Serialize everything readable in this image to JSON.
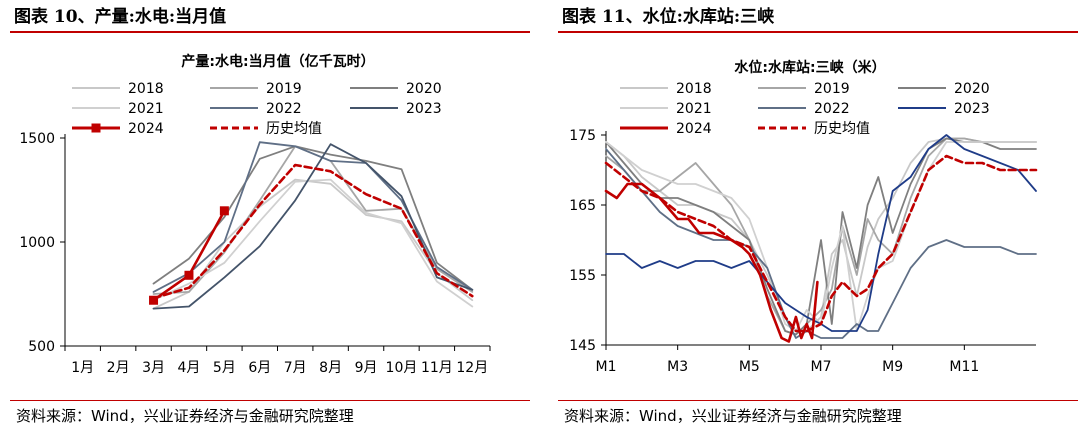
{
  "panels": {
    "left": {
      "figure_title": "图表 10、产量:水电:当月值",
      "source": "资料来源：Wind，兴业证券经济与金融研究院整理"
    },
    "right": {
      "figure_title": "图表 11、水位:水库站:三峡",
      "source": "资料来源：Wind，兴业证券经济与金融研究院整理"
    }
  },
  "colors": {
    "rule": "#c00000",
    "y2018": "#c8c8c8",
    "y2019": "#a6a6a6",
    "y2020": "#7f7f7f",
    "y2021": "#d0d0d0",
    "y2022": "#5f6f86",
    "y2023": "#44546a",
    "y2023_right": "#1f3c88",
    "y2024": "#c00000",
    "hist_avg": "#c00000"
  },
  "chart_data": [
    {
      "type": "line",
      "title": "产量:水电:当月值（亿千瓦时）",
      "xlabel": "",
      "ylabel": "",
      "categories": [
        "1月",
        "2月",
        "3月",
        "4月",
        "5月",
        "6月",
        "7月",
        "8月",
        "9月",
        "10月",
        "11月",
        "12月"
      ],
      "ylim": [
        500,
        1500
      ],
      "yticks": [
        500,
        1000,
        1500
      ],
      "legend": "top",
      "series": [
        {
          "name": "2018",
          "color_key": "y2018",
          "dash": false,
          "marker": false,
          "values": [
            null,
            null,
            680,
            760,
            1000,
            1170,
            1300,
            1280,
            1130,
            1100,
            850,
            720
          ]
        },
        {
          "name": "2019",
          "color_key": "y2019",
          "dash": false,
          "marker": false,
          "values": [
            null,
            null,
            750,
            760,
            950,
            1200,
            1460,
            1390,
            1150,
            1160,
            870,
            760
          ]
        },
        {
          "name": "2020",
          "color_key": "y2020",
          "dash": false,
          "marker": false,
          "values": [
            null,
            null,
            800,
            920,
            1120,
            1400,
            1460,
            1420,
            1390,
            1350,
            900,
            770
          ]
        },
        {
          "name": "2021",
          "color_key": "y2021",
          "dash": false,
          "marker": false,
          "values": [
            null,
            null,
            720,
            800,
            900,
            1100,
            1290,
            1300,
            1140,
            1090,
            810,
            690
          ]
        },
        {
          "name": "2022",
          "color_key": "y2022",
          "dash": false,
          "marker": false,
          "values": [
            null,
            null,
            760,
            850,
            1000,
            1480,
            1460,
            1390,
            1380,
            1200,
            880,
            770
          ]
        },
        {
          "name": "2023",
          "color_key": "y2023",
          "dash": false,
          "marker": false,
          "values": [
            null,
            null,
            680,
            690,
            830,
            980,
            1200,
            1470,
            1380,
            1220,
            830,
            770
          ]
        },
        {
          "name": "2024",
          "color_key": "y2024",
          "dash": false,
          "marker": true,
          "values": [
            null,
            null,
            720,
            840,
            1150,
            null,
            null,
            null,
            null,
            null,
            null,
            null
          ]
        },
        {
          "name": "历史均值",
          "color_key": "hist_avg",
          "dash": true,
          "marker": false,
          "values": [
            null,
            null,
            730,
            780,
            960,
            1180,
            1370,
            1340,
            1230,
            1160,
            850,
            740
          ]
        }
      ]
    },
    {
      "type": "line",
      "title": "水位:水库站:三峡（米）",
      "xlabel": "",
      "ylabel": "",
      "categories": [
        "M1",
        "M3",
        "M5",
        "M7",
        "M9",
        "M11"
      ],
      "x_range": [
        1,
        13
      ],
      "ylim": [
        145,
        175
      ],
      "yticks": [
        145,
        155,
        165,
        175
      ],
      "legend": "top",
      "series": [
        {
          "name": "2018",
          "color_key": "y2018",
          "dash": false,
          "marker": false,
          "x": [
            1,
            1.5,
            2,
            2.5,
            3,
            3.5,
            4,
            4.5,
            5,
            5.5,
            6,
            6.3,
            6.6,
            7,
            7.3,
            7.6,
            8,
            8.3,
            8.6,
            9,
            9.5,
            10,
            10.5,
            11,
            11.5,
            12,
            12.5,
            13
          ],
          "values": [
            174,
            172,
            169,
            167,
            165,
            165,
            164,
            163,
            160,
            155,
            149,
            147,
            147,
            149,
            158,
            160,
            152,
            159,
            163,
            166,
            171,
            174,
            174.5,
            174.5,
            174,
            174,
            174,
            174
          ]
        },
        {
          "name": "2019",
          "color_key": "y2019",
          "dash": false,
          "marker": false,
          "x": [
            1,
            1.5,
            2,
            2.5,
            3,
            3.5,
            4,
            4.5,
            5,
            5.5,
            6,
            6.3,
            6.6,
            7,
            7.3,
            7.6,
            8,
            8.3,
            8.6,
            9,
            9.5,
            10,
            10.5,
            11,
            11.5,
            12,
            12.5,
            13
          ],
          "values": [
            172,
            170,
            167,
            167,
            169,
            171,
            168,
            165,
            160,
            152,
            147,
            146.5,
            148,
            150,
            153,
            162,
            155,
            163,
            160,
            158,
            166,
            172,
            174.5,
            174.5,
            174,
            174,
            174,
            174
          ]
        },
        {
          "name": "2020",
          "color_key": "y2020",
          "dash": false,
          "marker": false,
          "x": [
            1,
            1.5,
            2,
            2.5,
            3,
            3.5,
            4,
            4.5,
            5,
            5.5,
            6,
            6.3,
            6.6,
            7,
            7.3,
            7.6,
            8,
            8.3,
            8.6,
            9,
            9.5,
            10,
            10.5,
            11,
            11.5,
            12,
            12.5,
            13
          ],
          "values": [
            174,
            171,
            168,
            166,
            166,
            165,
            164,
            162,
            160,
            153,
            147,
            146.5,
            148,
            160,
            148,
            164,
            156,
            165,
            169,
            161,
            168,
            173,
            174.5,
            174,
            174,
            173,
            173,
            173
          ]
        },
        {
          "name": "2021",
          "color_key": "y2021",
          "dash": false,
          "marker": false,
          "x": [
            1,
            1.5,
            2,
            2.5,
            3,
            3.5,
            4,
            4.5,
            5,
            5.5,
            6,
            6.3,
            6.6,
            7,
            7.3,
            7.6,
            8,
            8.3,
            8.6,
            9,
            9.5,
            10,
            10.5,
            11,
            11.5,
            12,
            12.5,
            13
          ],
          "values": [
            174,
            172,
            170,
            169,
            168,
            168,
            167,
            166,
            163,
            156,
            148,
            147,
            150,
            148,
            156,
            162,
            147,
            152,
            156,
            157,
            164,
            170,
            174,
            174,
            174,
            174,
            174,
            174
          ]
        },
        {
          "name": "2022",
          "color_key": "y2022",
          "dash": false,
          "marker": false,
          "x": [
            1,
            1.5,
            2,
            2.5,
            3,
            3.5,
            4,
            4.5,
            5,
            5.5,
            6,
            6.3,
            6.6,
            7,
            7.3,
            7.6,
            8,
            8.3,
            8.6,
            9,
            9.5,
            10,
            10.5,
            11,
            11.5,
            12,
            12.5,
            13
          ],
          "values": [
            173,
            170,
            167,
            164,
            162,
            161,
            160,
            160,
            159,
            156,
            149,
            146,
            147,
            146,
            146,
            146,
            148,
            147,
            147,
            151,
            156,
            159,
            160,
            159,
            159,
            159,
            158,
            158
          ]
        },
        {
          "name": "2023",
          "color_key": "y2023_right",
          "dash": false,
          "marker": false,
          "x": [
            1,
            1.5,
            2,
            2.5,
            3,
            3.5,
            4,
            4.5,
            5,
            5.5,
            6,
            6.3,
            6.6,
            7,
            7.3,
            7.6,
            8,
            8.3,
            8.6,
            9,
            9.5,
            10,
            10.5,
            11,
            11.5,
            12,
            12.5,
            13
          ],
          "values": [
            158,
            158,
            156,
            157,
            156,
            157,
            157,
            156,
            157,
            154,
            151,
            150,
            149,
            148,
            147,
            147,
            147,
            150,
            158,
            167,
            169,
            173,
            175,
            173,
            172,
            171,
            170,
            167
          ]
        },
        {
          "name": "2024",
          "color_key": "y2024",
          "dash": false,
          "marker": false,
          "x": [
            1,
            1.3,
            1.6,
            2,
            2.5,
            3,
            3.3,
            3.6,
            4,
            4.5,
            4.8,
            5,
            5.3,
            5.6,
            5.9,
            6.1,
            6.3,
            6.45,
            6.6,
            6.75,
            6.9
          ],
          "values": [
            167,
            166,
            168,
            168,
            166,
            163,
            163,
            161,
            161,
            160,
            159,
            158,
            155,
            150,
            146,
            145.5,
            149,
            146,
            148,
            146,
            154
          ]
        },
        {
          "name": "历史均值",
          "color_key": "hist_avg",
          "dash": true,
          "marker": false,
          "x": [
            1,
            1.5,
            2,
            2.5,
            3,
            3.5,
            4,
            4.5,
            5,
            5.5,
            6,
            6.3,
            6.6,
            7,
            7.3,
            7.6,
            8,
            8.3,
            8.6,
            9,
            9.5,
            10,
            10.5,
            11,
            11.5,
            12,
            12.5,
            13
          ],
          "values": [
            171,
            169,
            167,
            166,
            164,
            163,
            162,
            160,
            159,
            154,
            149,
            147,
            147,
            148,
            152,
            154,
            152,
            153,
            156,
            158,
            164,
            170,
            172,
            171,
            171,
            170,
            170,
            170
          ]
        }
      ]
    }
  ]
}
